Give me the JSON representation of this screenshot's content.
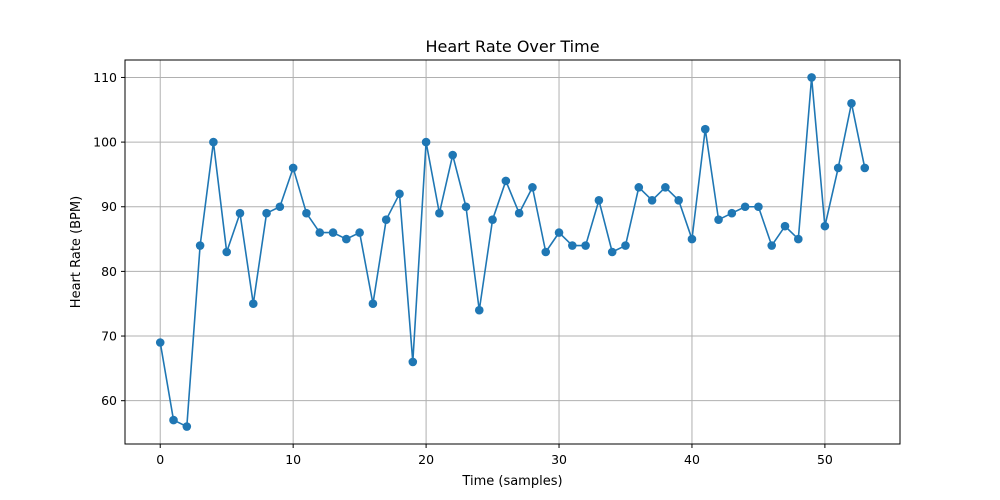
{
  "chart_data": {
    "type": "line",
    "title": "Heart Rate Over Time",
    "xlabel": "Time (samples)",
    "ylabel": "Heart Rate (BPM)",
    "xlim": [
      -2.65,
      55.65
    ],
    "ylim": [
      53.3,
      112.7
    ],
    "xticks": [
      0,
      10,
      20,
      30,
      40,
      50
    ],
    "yticks": [
      60,
      70,
      80,
      90,
      100,
      110
    ],
    "grid": true,
    "series": [
      {
        "color": "#1f77b4",
        "marker": "circle",
        "x": [
          0,
          1,
          2,
          3,
          4,
          5,
          6,
          7,
          8,
          9,
          10,
          11,
          12,
          13,
          14,
          15,
          16,
          17,
          18,
          19,
          20,
          21,
          22,
          23,
          24,
          25,
          26,
          27,
          28,
          29,
          30,
          31,
          32,
          33,
          34,
          35,
          36,
          37,
          38,
          39,
          40,
          41,
          42,
          43,
          44,
          45,
          46,
          47,
          48,
          49,
          50,
          51,
          52,
          53
        ],
        "values": [
          69,
          57,
          56,
          84,
          100,
          83,
          89,
          75,
          89,
          90,
          96,
          89,
          86,
          86,
          85,
          86,
          75,
          88,
          92,
          66,
          100,
          89,
          98,
          90,
          74,
          88,
          94,
          89,
          93,
          83,
          86,
          84,
          84,
          91,
          83,
          84,
          93,
          91,
          93,
          91,
          85,
          102,
          88,
          89,
          90,
          90,
          84,
          87,
          85,
          110,
          87,
          96,
          106,
          96
        ]
      }
    ]
  }
}
